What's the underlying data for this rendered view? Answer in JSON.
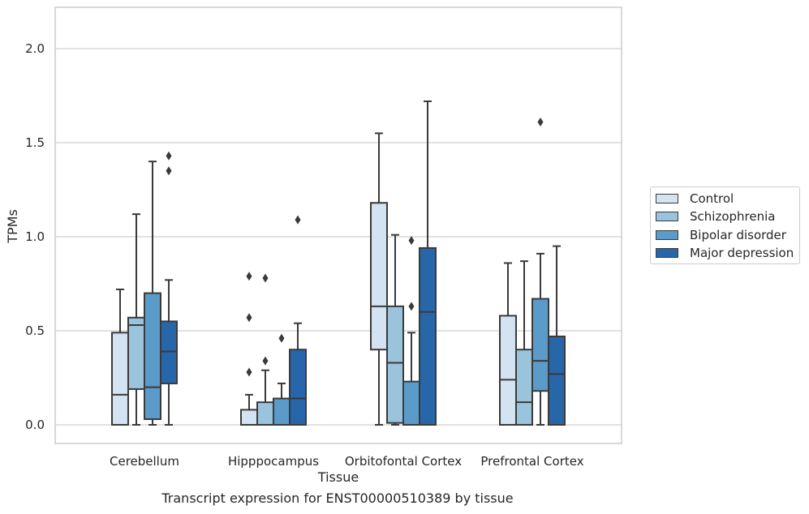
{
  "chart_data": {
    "type": "boxplot",
    "xlabel": "Tissue",
    "ylabel": "TPMs",
    "ylim": [
      -0.1,
      2.23
    ],
    "yticks": [
      0.0,
      0.5,
      1.0,
      1.5,
      2.0
    ],
    "ytick_labels": [
      "0.0",
      "0.5",
      "1.0",
      "1.5",
      "2.0"
    ],
    "grid": "horizontal",
    "legend_position": "right",
    "categories": [
      "Cerebellum",
      "Hipppocampus",
      "Orbitofontal Cortex",
      "Prefrontal Cortex"
    ],
    "series": [
      {
        "name": "Control",
        "color": "#d3e3f1",
        "boxes": [
          {
            "whislo": 0.0,
            "q1": 0.0,
            "med": 0.16,
            "q3": 0.49,
            "whishi": 0.72,
            "fliers": []
          },
          {
            "whislo": 0.0,
            "q1": 0.0,
            "med": 0.0,
            "q3": 0.08,
            "whishi": 0.16,
            "fliers": [
              0.28,
              0.57,
              0.79
            ]
          },
          {
            "whislo": 0.0,
            "q1": 0.4,
            "med": 0.63,
            "q3": 1.18,
            "whishi": 1.55,
            "fliers": []
          },
          {
            "whislo": 0.0,
            "q1": 0.0,
            "med": 0.24,
            "q3": 0.58,
            "whishi": 0.86,
            "fliers": []
          }
        ]
      },
      {
        "name": "Schizophrenia",
        "color": "#9ac3dc",
        "boxes": [
          {
            "whislo": 0.0,
            "q1": 0.19,
            "med": 0.53,
            "q3": 0.57,
            "whishi": 1.12,
            "fliers": []
          },
          {
            "whislo": 0.0,
            "q1": 0.0,
            "med": 0.0,
            "q3": 0.12,
            "whishi": 0.29,
            "fliers": [
              0.34,
              0.78
            ]
          },
          {
            "whislo": 0.0,
            "q1": 0.01,
            "med": 0.33,
            "q3": 0.63,
            "whishi": 1.01,
            "fliers": []
          },
          {
            "whislo": 0.0,
            "q1": 0.0,
            "med": 0.12,
            "q3": 0.4,
            "whishi": 0.87,
            "fliers": []
          }
        ]
      },
      {
        "name": "Bipolar disorder",
        "color": "#5a9bc9",
        "boxes": [
          {
            "whislo": 0.0,
            "q1": 0.03,
            "med": 0.2,
            "q3": 0.7,
            "whishi": 1.4,
            "fliers": []
          },
          {
            "whislo": 0.0,
            "q1": 0.0,
            "med": 0.0,
            "q3": 0.14,
            "whishi": 0.22,
            "fliers": [
              0.46
            ]
          },
          {
            "whislo": 0.0,
            "q1": 0.0,
            "med": 0.0,
            "q3": 0.23,
            "whishi": 0.49,
            "fliers": [
              0.63,
              0.98
            ]
          },
          {
            "whislo": 0.0,
            "q1": 0.18,
            "med": 0.34,
            "q3": 0.67,
            "whishi": 0.91,
            "fliers": [
              1.61
            ]
          }
        ]
      },
      {
        "name": "Major depression",
        "color": "#2766a9",
        "boxes": [
          {
            "whislo": 0.0,
            "q1": 0.22,
            "med": 0.39,
            "q3": 0.55,
            "whishi": 0.77,
            "fliers": [
              1.35,
              1.43
            ]
          },
          {
            "whislo": 0.0,
            "q1": 0.0,
            "med": 0.14,
            "q3": 0.4,
            "whishi": 0.54,
            "fliers": [
              1.09
            ]
          },
          {
            "whislo": 0.0,
            "q1": 0.0,
            "med": 0.6,
            "q3": 0.94,
            "whishi": 1.72,
            "fliers": []
          },
          {
            "whislo": 0.0,
            "q1": 0.0,
            "med": 0.27,
            "q3": 0.47,
            "whishi": 0.95,
            "fliers": []
          }
        ]
      }
    ]
  },
  "caption": "Transcript expression for ENST00000510389 by tissue"
}
